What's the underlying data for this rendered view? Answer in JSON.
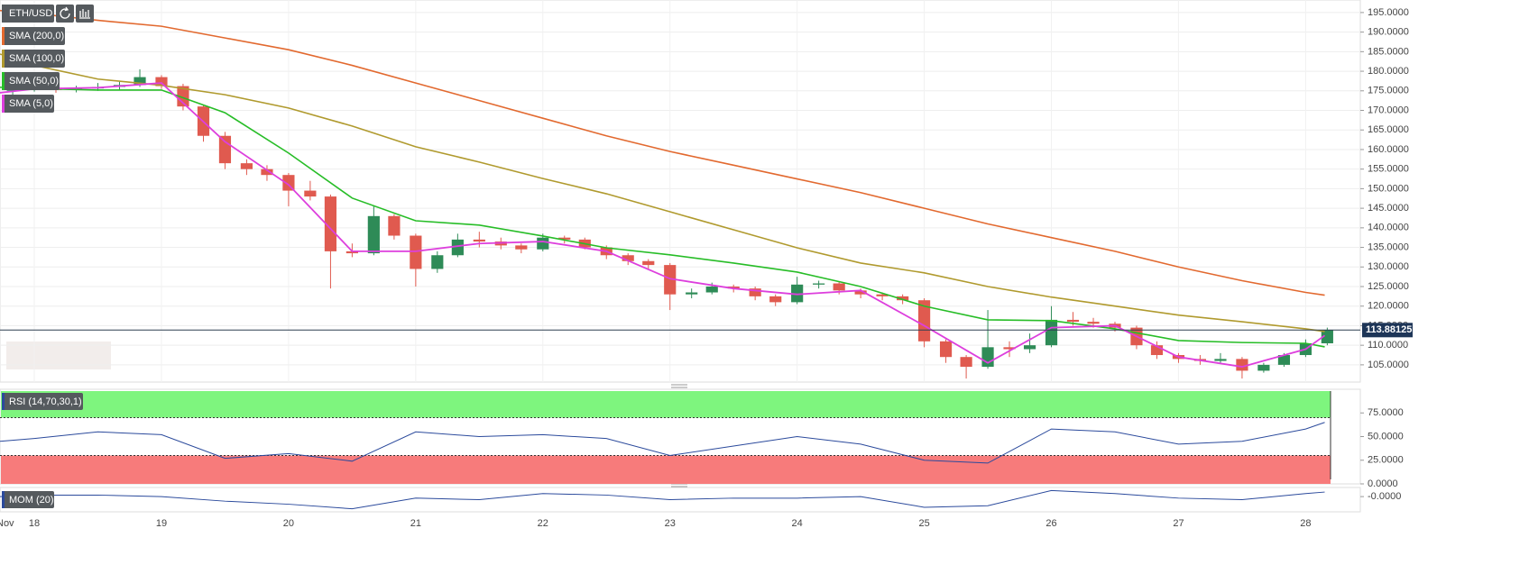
{
  "chart_data": [
    {
      "type": "candlestick",
      "title": "ETH/USD",
      "up_color": "#2e8b57",
      "down_color": "#e05a4f",
      "x": [
        17.83,
        18.0,
        18.17,
        18.33,
        18.5,
        18.67,
        18.83,
        19.0,
        19.17,
        19.33,
        19.5,
        19.67,
        19.83,
        20.0,
        20.17,
        20.33,
        20.5,
        20.67,
        20.83,
        21.0,
        21.17,
        21.33,
        21.5,
        21.67,
        21.83,
        22.0,
        22.17,
        22.33,
        22.5,
        22.67,
        22.83,
        23.0,
        23.17,
        23.33,
        23.5,
        23.67,
        23.83,
        24.0,
        24.17,
        24.33,
        24.5,
        24.67,
        24.83,
        25.0,
        25.17,
        25.33,
        25.5,
        25.67,
        25.83,
        26.0,
        26.17,
        26.33,
        26.5,
        26.67,
        26.83,
        27.0,
        27.17,
        27.33,
        27.5,
        27.67,
        27.83,
        28.0,
        28.17
      ],
      "open": [
        175.0,
        175.5,
        175.8,
        175.2,
        175.6,
        176.0,
        176.5,
        178.5,
        176.2,
        171.0,
        163.5,
        156.5,
        155.0,
        153.5,
        149.5,
        148.0,
        134.0,
        133.5,
        143.0,
        138.0,
        129.5,
        133.0,
        137.0,
        136.5,
        135.5,
        134.5,
        137.5,
        137.0,
        135.0,
        133.0,
        131.5,
        130.5,
        123.0,
        123.5,
        125.0,
        124.5,
        122.5,
        121.0,
        125.5,
        125.8,
        124.0,
        123.0,
        122.5,
        121.5,
        111.0,
        107.0,
        104.5,
        109.5,
        109.0,
        110.0,
        116.5,
        116.0,
        115.5,
        114.5,
        110.0,
        107.5,
        106.5,
        106.0,
        106.5,
        103.5,
        105.0,
        107.5,
        110.5
      ],
      "high": [
        176.5,
        176.8,
        176.5,
        176.3,
        177.0,
        177.3,
        180.5,
        179.0,
        176.8,
        171.5,
        164.5,
        157.5,
        156.0,
        154.0,
        152.0,
        148.5,
        136.0,
        145.5,
        143.5,
        138.5,
        134.0,
        138.5,
        139.0,
        137.5,
        136.0,
        138.5,
        138.0,
        137.5,
        135.5,
        133.5,
        132.0,
        131.0,
        124.5,
        126.0,
        125.5,
        125.0,
        123.0,
        127.5,
        126.5,
        126.2,
        124.5,
        123.5,
        123.0,
        122.0,
        111.5,
        107.5,
        119.0,
        111.0,
        113.0,
        120.0,
        118.5,
        117.0,
        116.0,
        115.0,
        111.0,
        108.0,
        107.5,
        108.0,
        107.0,
        105.5,
        108.0,
        111.5,
        114.5
      ],
      "low": [
        174.0,
        174.8,
        174.5,
        174.6,
        175.0,
        175.3,
        176.0,
        175.5,
        170.0,
        162.0,
        155.0,
        153.5,
        152.0,
        145.5,
        147.0,
        124.5,
        132.5,
        133.0,
        137.0,
        125.0,
        128.5,
        132.5,
        135.0,
        134.5,
        133.5,
        134.0,
        136.0,
        134.5,
        132.0,
        130.5,
        129.5,
        119.0,
        122.0,
        123.0,
        123.5,
        121.5,
        120.0,
        120.5,
        124.5,
        123.0,
        122.0,
        121.5,
        120.5,
        109.5,
        105.5,
        101.5,
        104.0,
        107.0,
        108.0,
        109.5,
        115.0,
        114.5,
        113.5,
        109.0,
        106.5,
        105.5,
        105.0,
        105.5,
        101.5,
        103.0,
        104.5,
        107.0,
        110.0
      ],
      "close": [
        175.5,
        175.8,
        175.2,
        175.6,
        176.0,
        176.5,
        178.5,
        176.2,
        171.0,
        163.5,
        156.5,
        155.0,
        153.5,
        149.5,
        148.0,
        134.0,
        133.5,
        143.0,
        138.0,
        129.5,
        133.0,
        137.0,
        136.5,
        135.5,
        134.5,
        137.5,
        137.0,
        135.0,
        133.0,
        131.5,
        130.5,
        123.0,
        123.5,
        125.0,
        124.5,
        122.5,
        121.0,
        125.5,
        125.8,
        124.0,
        123.0,
        122.5,
        121.5,
        111.0,
        107.0,
        104.5,
        109.5,
        109.0,
        110.0,
        116.5,
        116.0,
        115.5,
        114.5,
        110.0,
        107.5,
        106.5,
        106.0,
        106.5,
        103.5,
        105.0,
        107.5,
        110.5,
        113.9
      ],
      "series": [
        {
          "name": "SMA (200,0)",
          "color": "#e2692f",
          "x": [
            17.73,
            18,
            18.5,
            19,
            19.5,
            20,
            20.5,
            21,
            21.5,
            22,
            22.5,
            23,
            23.5,
            24,
            24.5,
            25,
            25.5,
            26,
            26.5,
            27,
            27.5,
            28,
            28.15
          ],
          "values": [
            195.5,
            194.8,
            193.0,
            191.5,
            188.5,
            185.5,
            181.5,
            177.0,
            172.5,
            168.0,
            163.5,
            159.5,
            156.0,
            152.5,
            149.0,
            145.0,
            141.0,
            137.5,
            134.0,
            130.0,
            126.5,
            123.5,
            122.8
          ]
        },
        {
          "name": "SMA (100,0)",
          "color": "#b09a2e",
          "x": [
            17.73,
            18,
            18.5,
            19,
            19.5,
            20,
            20.5,
            21,
            21.5,
            22,
            22.5,
            23,
            23.5,
            24,
            24.5,
            25,
            25.5,
            26,
            26.5,
            27,
            27.5,
            28,
            28.15
          ],
          "values": [
            184.4,
            181.5,
            178.0,
            176.4,
            174.0,
            170.6,
            166.0,
            160.7,
            156.8,
            152.6,
            148.7,
            144.1,
            139.5,
            134.9,
            131.0,
            128.5,
            125.0,
            122.3,
            120.0,
            117.7,
            116.0,
            114.2,
            113.5
          ]
        },
        {
          "name": "SMA (50,0)",
          "color": "#27bd27",
          "x": [
            17.73,
            18,
            18.5,
            19,
            19.5,
            20,
            20.5,
            21,
            21.5,
            22,
            22.5,
            23,
            23.5,
            24,
            24.5,
            25,
            25.5,
            26,
            26.5,
            27,
            27.5,
            28,
            28.15
          ],
          "values": [
            175.9,
            175.6,
            175.2,
            175.2,
            169.4,
            159.1,
            147.6,
            141.8,
            140.7,
            137.9,
            134.9,
            133.1,
            131.0,
            128.7,
            125.0,
            120.0,
            116.5,
            116.3,
            114.2,
            111.2,
            110.7,
            110.5,
            109.6
          ]
        },
        {
          "name": "SMA (5,0)",
          "color": "#dd3fdd",
          "x": [
            17.73,
            18,
            18.5,
            19,
            19.5,
            20,
            20.5,
            21,
            21.5,
            22,
            22.5,
            23,
            23.5,
            24,
            24.5,
            25,
            25.5,
            26,
            26.5,
            27,
            27.5,
            28,
            28.15
          ],
          "values": [
            174.5,
            175.5,
            175.8,
            177.0,
            162.0,
            151.0,
            134.0,
            134.0,
            136.0,
            136.5,
            134.0,
            127.0,
            124.5,
            123.0,
            124.0,
            115.0,
            105.5,
            114.5,
            115.0,
            107.0,
            104.5,
            109.0,
            112.5
          ]
        }
      ],
      "last_price": 113.88125,
      "month_label": "Nov",
      "xlim": [
        17.73,
        28.43
      ],
      "xticks": [
        18,
        19,
        20,
        21,
        22,
        23,
        24,
        25,
        26,
        27,
        28
      ],
      "ylim": [
        100.6,
        198.2
      ],
      "yticks": [
        {
          "value": 105,
          "label": "105.0000"
        },
        {
          "value": 110,
          "label": "110.0000"
        },
        {
          "value": 115,
          "label": "115.0000"
        },
        {
          "value": 120,
          "label": "120.0000"
        },
        {
          "value": 125,
          "label": "125.0000"
        },
        {
          "value": 130,
          "label": "130.0000"
        },
        {
          "value": 135,
          "label": "135.0000"
        },
        {
          "value": 140,
          "label": "140.0000"
        },
        {
          "value": 145,
          "label": "145.0000"
        },
        {
          "value": 150,
          "label": "150.0000"
        },
        {
          "value": 155,
          "label": "155.0000"
        },
        {
          "value": 160,
          "label": "160.0000"
        },
        {
          "value": 165,
          "label": "165.0000"
        },
        {
          "value": 170,
          "label": "170.0000"
        },
        {
          "value": 175,
          "label": "175.0000"
        },
        {
          "value": 180,
          "label": "180.0000"
        },
        {
          "value": 185,
          "label": "185.0000"
        },
        {
          "value": 190,
          "label": "190.0000"
        },
        {
          "value": 195,
          "label": "195.0000"
        }
      ],
      "grid": true
    },
    {
      "type": "line",
      "title": "RSI (14,70,30,1)",
      "color": "#2b4a9c",
      "upper": 70,
      "lower": 30,
      "upper_color": "#7ef57e",
      "lower_color": "#f77b7b",
      "x": [
        17.73,
        18,
        18.5,
        19,
        19.5,
        20,
        20.5,
        21,
        21.5,
        22,
        22.5,
        23,
        23.5,
        24,
        24.5,
        25,
        25.5,
        26,
        26.5,
        27,
        27.5,
        28,
        28.15
      ],
      "values": [
        45,
        48,
        55,
        52,
        27,
        32,
        24,
        55,
        50,
        52,
        48,
        30,
        40,
        50,
        42,
        25,
        22,
        58,
        55,
        42,
        45,
        58,
        65
      ],
      "ylim": [
        0,
        100
      ],
      "yticks": [
        {
          "value": 0,
          "label": "0.0000"
        },
        {
          "value": 25,
          "label": "25.0000"
        },
        {
          "value": 50,
          "label": "50.0000"
        },
        {
          "value": 75,
          "label": "75.0000"
        }
      ]
    },
    {
      "type": "line",
      "title": "MOM (20)",
      "color": "#2b4a9c",
      "x": [
        17.73,
        18,
        18.5,
        19,
        19.5,
        20,
        20.5,
        21,
        21.5,
        22,
        22.5,
        23,
        23.5,
        24,
        24.5,
        25,
        25.5,
        26,
        26.5,
        27,
        27.5,
        28,
        28.15
      ],
      "values": [
        0,
        1,
        1,
        0,
        -3,
        -5,
        -8,
        -1,
        -2,
        2,
        1,
        -2,
        -1,
        -1,
        0,
        -7,
        -6,
        4,
        2,
        -1,
        -2,
        2,
        3
      ],
      "ylim": [
        -10,
        6
      ],
      "yticks": [
        {
          "value": 0,
          "label": "-0.0000"
        }
      ]
    }
  ]
}
